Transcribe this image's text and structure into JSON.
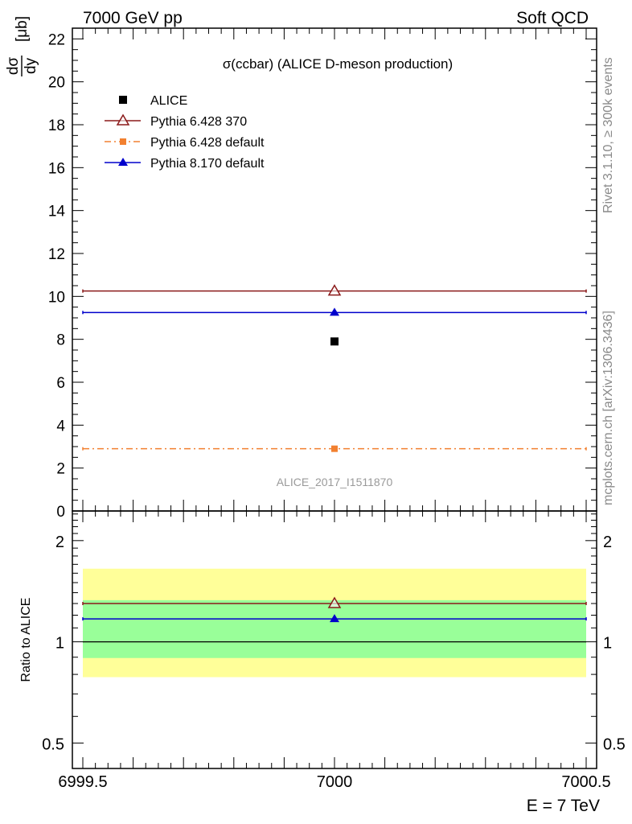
{
  "header": {
    "left_label": "7000 GeV pp",
    "right_label": "Soft QCD",
    "bottom_label": "E = 7 TeV"
  },
  "side_labels": {
    "rivet": "Rivet 3.1.10, ≥ 300k events",
    "source": "mcplots.cern.ch [arXiv:1306.3436]"
  },
  "chart_data": [
    {
      "type": "scatter",
      "title": "σ(ccbar) (ALICE D-meson production)",
      "ylabel_num": "dσ",
      "ylabel_den": "dy",
      "ylabel_unit": "[μb]",
      "analysis_id": "ALICE_2017_I1511870",
      "xlim": [
        6999.5,
        7000.5
      ],
      "ylim": [
        0,
        22.5
      ],
      "yticks": [
        0,
        2,
        4,
        6,
        8,
        10,
        12,
        14,
        16,
        18,
        20,
        22
      ],
      "ytick_labels": [
        "0",
        "2",
        "4",
        "6",
        "8",
        "10",
        "12",
        "14",
        "16",
        "18",
        "20",
        "22"
      ],
      "grid": false,
      "legend_position": "top-left",
      "series": [
        {
          "name": "ALICE",
          "color": "#000000",
          "marker": "square",
          "line": "none",
          "x": [
            7000
          ],
          "y": [
            7.9
          ]
        },
        {
          "name": "Pythia 6.428 370",
          "color": "#8b1a1a",
          "marker": "triangle-open",
          "line": "solid",
          "x": [
            7000
          ],
          "y": [
            10.25
          ],
          "xerr": [
            0.5
          ]
        },
        {
          "name": "Pythia 6.428 default",
          "color": "#f28030",
          "marker": "square-small",
          "line": "dashdot",
          "x": [
            7000
          ],
          "y": [
            2.9
          ],
          "xerr": [
            0.5
          ]
        },
        {
          "name": "Pythia 8.170 default",
          "color": "#0000cc",
          "marker": "triangle",
          "line": "solid",
          "x": [
            7000
          ],
          "y": [
            9.25
          ],
          "xerr": [
            0.5
          ]
        }
      ]
    },
    {
      "type": "scatter",
      "ylabel": "Ratio to ALICE",
      "log_y": true,
      "xlim": [
        6999.5,
        7000.5
      ],
      "ylim": [
        0.42,
        2.45
      ],
      "yticks": [
        0.5,
        1,
        2
      ],
      "ytick_labels": [
        "0.5",
        "1",
        "2"
      ],
      "xticks": [
        6999.5,
        7000,
        7000.5
      ],
      "xtick_labels": [
        "6999.5",
        "7000",
        "7000.5"
      ],
      "bands": [
        {
          "low": 0.785,
          "high": 1.65,
          "color": "#ffff99"
        },
        {
          "low": 0.895,
          "high": 1.33,
          "color": "#99ff99"
        }
      ],
      "reference_line": 1,
      "series": [
        {
          "name": "Pythia 6.428 370",
          "color": "#8b1a1a",
          "marker": "triangle-open",
          "x": [
            7000
          ],
          "y": [
            1.3
          ]
        },
        {
          "name": "Pythia 8.170 default",
          "color": "#0000cc",
          "marker": "triangle",
          "x": [
            7000
          ],
          "y": [
            1.17
          ]
        }
      ]
    }
  ]
}
